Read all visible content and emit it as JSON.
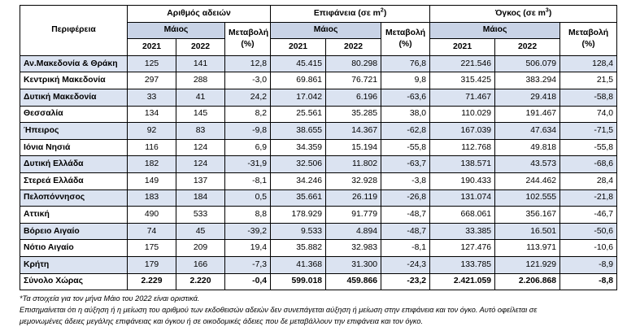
{
  "headers": {
    "region": "Περιφέρεια",
    "group_permits": "Αριθμός αδειών",
    "group_area_prefix": "Επιφάνεια (σε m",
    "group_area_sup": "2",
    "group_area_suffix": ")",
    "group_volume_prefix": "Όγκος (σε m",
    "group_volume_sup": "3",
    "group_volume_suffix": ")",
    "month": "Μάιος",
    "change_line1": "Μεταβολή",
    "change_line2": "(%)",
    "year_2021": "2021",
    "year_2022": "2022"
  },
  "rows": [
    {
      "region": "Αν.Μακεδονία & Θράκη",
      "shade": true,
      "permits_2021": "125",
      "permits_2022": "141",
      "permits_change": "12,8",
      "area_2021": "45.415",
      "area_2022": "80.298",
      "area_change": "76,8",
      "volume_2021": "221.546",
      "volume_2022": "506.079",
      "volume_change": "128,4"
    },
    {
      "region": "Κεντρική Μακεδονία",
      "shade": false,
      "permits_2021": "297",
      "permits_2022": "288",
      "permits_change": "-3,0",
      "area_2021": "69.861",
      "area_2022": "76.721",
      "area_change": "9,8",
      "volume_2021": "315.425",
      "volume_2022": "383.294",
      "volume_change": "21,5"
    },
    {
      "region": "Δυτική Μακεδονία",
      "shade": true,
      "permits_2021": "33",
      "permits_2022": "41",
      "permits_change": "24,2",
      "area_2021": "17.042",
      "area_2022": "6.196",
      "area_change": "-63,6",
      "volume_2021": "71.467",
      "volume_2022": "29.418",
      "volume_change": "-58,8"
    },
    {
      "region": "Θεσσαλία",
      "shade": false,
      "permits_2021": "134",
      "permits_2022": "145",
      "permits_change": "8,2",
      "area_2021": "25.561",
      "area_2022": "35.285",
      "area_change": "38,0",
      "volume_2021": "110.029",
      "volume_2022": "191.467",
      "volume_change": "74,0"
    },
    {
      "region": "Ήπειρος",
      "shade": true,
      "permits_2021": "92",
      "permits_2022": "83",
      "permits_change": "-9,8",
      "area_2021": "38.655",
      "area_2022": "14.367",
      "area_change": "-62,8",
      "volume_2021": "167.039",
      "volume_2022": "47.634",
      "volume_change": "-71,5"
    },
    {
      "region": "Ιόνια Νησιά",
      "shade": false,
      "permits_2021": "116",
      "permits_2022": "124",
      "permits_change": "6,9",
      "area_2021": "34.359",
      "area_2022": "15.194",
      "area_change": "-55,8",
      "volume_2021": "112.768",
      "volume_2022": "49.818",
      "volume_change": "-55,8"
    },
    {
      "region": "Δυτική Ελλάδα",
      "shade": true,
      "permits_2021": "182",
      "permits_2022": "124",
      "permits_change": "-31,9",
      "area_2021": "32.506",
      "area_2022": "11.802",
      "area_change": "-63,7",
      "volume_2021": "138.571",
      "volume_2022": "43.573",
      "volume_change": "-68,6"
    },
    {
      "region": "Στερεά Ελλάδα",
      "shade": false,
      "permits_2021": "149",
      "permits_2022": "137",
      "permits_change": "-8,1",
      "area_2021": "34.246",
      "area_2022": "32.928",
      "area_change": "-3,8",
      "volume_2021": "190.433",
      "volume_2022": "244.462",
      "volume_change": "28,4"
    },
    {
      "region": "Πελοπόννησος",
      "shade": true,
      "permits_2021": "183",
      "permits_2022": "184",
      "permits_change": "0,5",
      "area_2021": "35.661",
      "area_2022": "26.119",
      "area_change": "-26,8",
      "volume_2021": "131.074",
      "volume_2022": "102.555",
      "volume_change": "-21,8"
    },
    {
      "region": "Αττική",
      "shade": false,
      "permits_2021": "490",
      "permits_2022": "533",
      "permits_change": "8,8",
      "area_2021": "178.929",
      "area_2022": "91.779",
      "area_change": "-48,7",
      "volume_2021": "668.061",
      "volume_2022": "356.167",
      "volume_change": "-46,7"
    },
    {
      "region": "Βόρειο Αιγαίο",
      "shade": true,
      "permits_2021": "74",
      "permits_2022": "45",
      "permits_change": "-39,2",
      "area_2021": "9.533",
      "area_2022": "4.894",
      "area_change": "-48,7",
      "volume_2021": "33.385",
      "volume_2022": "16.501",
      "volume_change": "-50,6"
    },
    {
      "region": "Νότιο Αιγαίο",
      "shade": false,
      "permits_2021": "175",
      "permits_2022": "209",
      "permits_change": "19,4",
      "area_2021": "35.882",
      "area_2022": "32.983",
      "area_change": "-8,1",
      "volume_2021": "127.476",
      "volume_2022": "113.971",
      "volume_change": "-10,6"
    },
    {
      "region": "Κρήτη",
      "shade": true,
      "permits_2021": "179",
      "permits_2022": "166",
      "permits_change": "-7,3",
      "area_2021": "41.368",
      "area_2022": "31.300",
      "area_change": "-24,3",
      "volume_2021": "133.785",
      "volume_2022": "121.929",
      "volume_change": "-8,9"
    }
  ],
  "total": {
    "region": "Σύνολο Χώρας",
    "permits_2021": "2.229",
    "permits_2022": "2.220",
    "permits_change": "-0,4",
    "area_2021": "599.018",
    "area_2022": "459.866",
    "area_change": "-23,2",
    "volume_2021": "2.421.059",
    "volume_2022": "2.206.868",
    "volume_change": "-8,8"
  },
  "notes": [
    "*Τα στοιχεία για τον μήνα Μάιο του 2022 είναι οριστικά.",
    "Επισημαίνεται ότι η αύξηση ή η μείωση του αριθμού των εκδοθεισών αδειών δεν συνεπάγεται αύξηση ή μείωση στην επιφάνεια και τον όγκο. Αυτό οφείλεται σε",
    "μεμονωμένες άδειες μεγάλης επιφάνειας και όγκου ή σε οικοδομικές άδειες που δε μεταβάλλουν την επιφάνεια και τον όγκο."
  ]
}
